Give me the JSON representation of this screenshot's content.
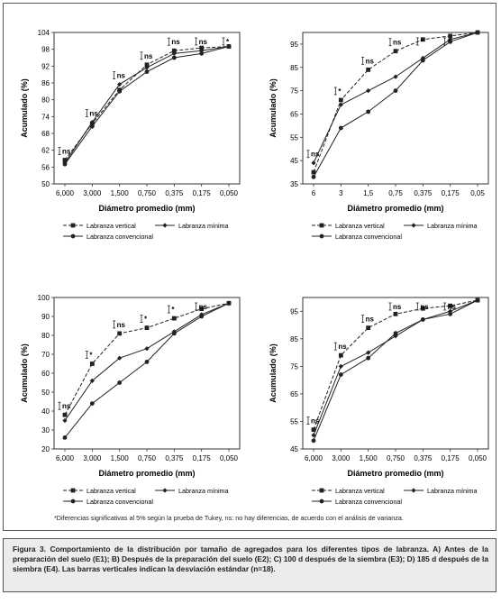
{
  "chart_data": [
    {
      "type": "line",
      "panel_label": "A",
      "xlabel": "Diámetro promedio (mm)",
      "ylabel": "Acumulado (%)",
      "categories": [
        "6,000",
        "3,000",
        "1,500",
        "0,750",
        "0,375",
        "0,175",
        "0,050"
      ],
      "ylim": [
        50,
        104
      ],
      "yticks": [
        50,
        56,
        62,
        68,
        74,
        80,
        86,
        92,
        98,
        104
      ],
      "series": [
        {
          "name": "Labranza vertical",
          "values": [
            58.5,
            71.5,
            83.5,
            92.5,
            97.5,
            98.5,
            99
          ]
        },
        {
          "name": "Labranza mínima",
          "values": [
            57.5,
            72,
            85.5,
            91.5,
            96.5,
            97.5,
            99
          ]
        },
        {
          "name": "Labranza convencional",
          "values": [
            57,
            70.5,
            83,
            90,
            95,
            96.5,
            99
          ]
        }
      ],
      "annotations": [
        "ns",
        "ns",
        "ns",
        "ns",
        "ns",
        "ns",
        "*"
      ],
      "legend": "bottom"
    },
    {
      "type": "line",
      "panel_label": "B",
      "xlabel": "Diámetro promedio (mm)",
      "ylabel": "Acumulado (%)",
      "categories": [
        "6",
        "3",
        "1,5",
        "0,75",
        "0,375",
        "0,175",
        "0,05"
      ],
      "ylim": [
        35,
        100
      ],
      "yticks": [
        35,
        45,
        55,
        65,
        75,
        85,
        95
      ],
      "series": [
        {
          "name": "Labranza vertical",
          "values": [
            40,
            71,
            84,
            92,
            97,
            98.5,
            100
          ]
        },
        {
          "name": "Labranza mínima",
          "values": [
            44,
            69,
            75,
            81,
            89,
            97,
            100
          ]
        },
        {
          "name": "Labranza convencional",
          "values": [
            38,
            59,
            66,
            75,
            88,
            96,
            100
          ]
        }
      ],
      "annotations": [
        "ns",
        "*",
        "ns",
        "ns",
        "*",
        "*",
        ""
      ],
      "legend": "bottom"
    },
    {
      "type": "line",
      "panel_label": "C",
      "xlabel": "Diámetro promedio (mm)",
      "ylabel": "Acumulado (%)",
      "categories": [
        "6,000",
        "3,000",
        "1,500",
        "0,750",
        "0,375",
        "0,175",
        "0,050"
      ],
      "ylim": [
        20,
        100
      ],
      "yticks": [
        20,
        30,
        40,
        50,
        60,
        70,
        80,
        90,
        100
      ],
      "series": [
        {
          "name": "Labranza vertical",
          "values": [
            38,
            65,
            81,
            84,
            89,
            94,
            97
          ]
        },
        {
          "name": "Labranza mínima",
          "values": [
            35,
            56,
            68,
            73,
            82,
            91,
            97
          ]
        },
        {
          "name": "Labranza convencional",
          "values": [
            26,
            44,
            55,
            66,
            81,
            90,
            97
          ]
        }
      ],
      "annotations": [
        "ns",
        "*",
        "ns",
        "*",
        "*",
        "ns",
        ""
      ],
      "legend": "bottom"
    },
    {
      "type": "line",
      "panel_label": "D",
      "xlabel": "Diámetro promedio (mm)",
      "ylabel": "Acumulado (%)",
      "categories": [
        "6,000",
        "3,000",
        "1,500",
        "0,750",
        "0,375",
        "0,175",
        "0,050"
      ],
      "ylim": [
        45,
        100
      ],
      "yticks": [
        45,
        55,
        65,
        75,
        85,
        95
      ],
      "series": [
        {
          "name": "Labranza vertical",
          "values": [
            52,
            79,
            89,
            94,
            96,
            97,
            99
          ]
        },
        {
          "name": "Labranza mínima",
          "values": [
            50,
            75,
            80,
            86,
            92,
            95,
            99
          ]
        },
        {
          "name": "Labranza convencional",
          "values": [
            48,
            72,
            78,
            87,
            92,
            94,
            99
          ]
        }
      ],
      "annotations": [
        "ns",
        "ns",
        "ns",
        "ns",
        "ns",
        "ns",
        ""
      ],
      "legend": "bottom"
    }
  ],
  "footnote": "*Diferencias significativas al 5% según la prueba de Tukey, ns: no hay diferencias, de acuerdo con el análisis de varianza.",
  "caption": "Figura 3. Comportamiento de la distribución por tamaño de agregados para los diferentes tipos de labranza. A) Antes de la preparación del suelo (E1); B) Después de la preparación del suelo (E2); C) 100 d después de la siembra (E3); D) 185 d después de la siembra (E4). Las barras verticales indican la desviación estándar (n=18)."
}
